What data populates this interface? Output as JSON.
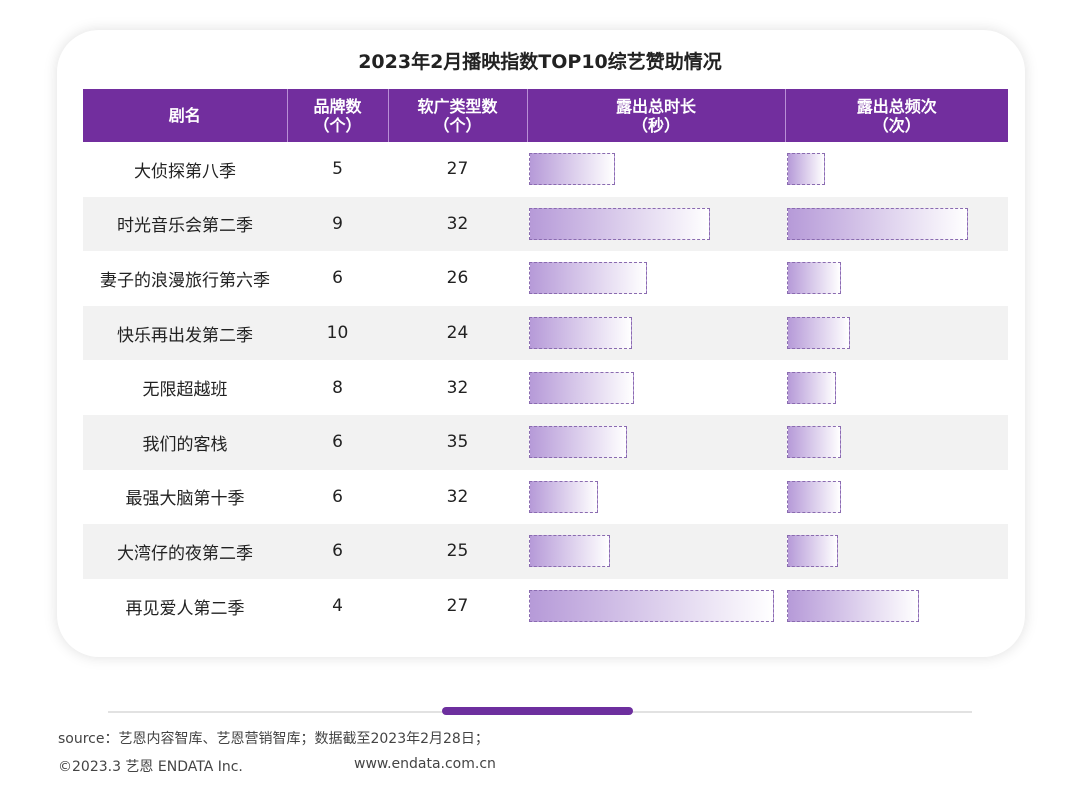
{
  "title": "2023年2月播映指数TOP10综艺赞助情况",
  "headers": [
    "剧名",
    "品牌数\n（个）",
    "软广类型数\n（个）",
    "露出总时长\n（秒）",
    "露出总频次\n（次）"
  ],
  "chart_data": {
    "type": "table",
    "title": "2023年2月播映指数TOP10综艺赞助情况",
    "columns": [
      "剧名",
      "品牌数（个）",
      "软广类型数（个）",
      "露出总时长（秒）",
      "露出总频次（次）"
    ],
    "note": "duration and frequency shown as bars only; values are relative bar length (% of column max)",
    "rows": [
      {
        "name": "大侦探第八季",
        "brands": 5,
        "types": 27,
        "duration_rel": 35,
        "freq_rel": 21
      },
      {
        "name": "时光音乐会第二季",
        "brands": 9,
        "types": 32,
        "duration_rel": 74,
        "freq_rel": 100
      },
      {
        "name": "妻子的浪漫旅行第六季",
        "brands": 6,
        "types": 26,
        "duration_rel": 48,
        "freq_rel": 30
      },
      {
        "name": "快乐再出发第二季",
        "brands": 10,
        "types": 24,
        "duration_rel": 42,
        "freq_rel": 35
      },
      {
        "name": "无限超越班",
        "brands": 8,
        "types": 32,
        "duration_rel": 43,
        "freq_rel": 27
      },
      {
        "name": "我们的客栈",
        "brands": 6,
        "types": 35,
        "duration_rel": 40,
        "freq_rel": 30
      },
      {
        "name": "最强大脑第十季",
        "brands": 6,
        "types": 32,
        "duration_rel": 28,
        "freq_rel": 30
      },
      {
        "name": "大湾仔的夜第二季",
        "brands": 6,
        "types": 25,
        "duration_rel": 33,
        "freq_rel": 28
      },
      {
        "name": "再见爱人第二季",
        "brands": 4,
        "types": 27,
        "duration_rel": 100,
        "freq_rel": 73
      }
    ]
  },
  "colors": {
    "header": "#722e9e",
    "bar_start": "#b69ad8",
    "row_alt": "#f2f2f2"
  },
  "footer": {
    "source": "source：艺恩内容智库、艺恩营销智库；数据截至2023年2月28日；",
    "copyright": "©2023.3 艺恩 ENDATA Inc.",
    "url": "www.endata.com.cn"
  }
}
